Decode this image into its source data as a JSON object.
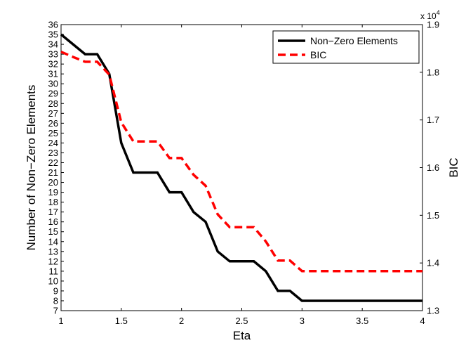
{
  "chart_data": {
    "type": "line",
    "xlabel": "Eta",
    "ylabel_left": "Number of Non−Zero Elements",
    "ylabel_right": "BIC",
    "right_axis_multiplier": "x 10",
    "right_axis_multiplier_exponent": "4",
    "xlim": [
      1,
      4
    ],
    "ylim_left": [
      7,
      36
    ],
    "ylim_right": [
      1.3,
      1.9
    ],
    "x_ticks": [
      "1",
      "1.5",
      "2",
      "2.5",
      "3",
      "3.5",
      "4"
    ],
    "x_tick_values": [
      1,
      1.5,
      2,
      2.5,
      3,
      3.5,
      4
    ],
    "left_ticks": [
      7,
      8,
      9,
      10,
      11,
      12,
      13,
      14,
      15,
      16,
      17,
      18,
      19,
      20,
      21,
      22,
      23,
      24,
      25,
      26,
      27,
      28,
      29,
      30,
      31,
      32,
      33,
      34,
      35,
      36
    ],
    "right_ticks": [
      "1.3",
      "1.4",
      "1.5",
      "1.6",
      "1.7",
      "1.8",
      "1.9"
    ],
    "right_tick_values": [
      1.3,
      1.4,
      1.5,
      1.6,
      1.7,
      1.8,
      1.9
    ],
    "grid": false,
    "legend_position": "top-right",
    "series": [
      {
        "name": "Non−Zero Elements",
        "axis": "left",
        "color": "#000000",
        "style": "solid",
        "points": [
          [
            1.0,
            35
          ],
          [
            1.1,
            34
          ],
          [
            1.2,
            33
          ],
          [
            1.3,
            33
          ],
          [
            1.4,
            31
          ],
          [
            1.5,
            24
          ],
          [
            1.6,
            21
          ],
          [
            1.7,
            21
          ],
          [
            1.8,
            21
          ],
          [
            1.9,
            19
          ],
          [
            2.0,
            19
          ],
          [
            2.1,
            17
          ],
          [
            2.2,
            16
          ],
          [
            2.3,
            13
          ],
          [
            2.4,
            12
          ],
          [
            2.5,
            12
          ],
          [
            2.6,
            12
          ],
          [
            2.7,
            11
          ],
          [
            2.8,
            9
          ],
          [
            2.9,
            9
          ],
          [
            3.0,
            8
          ],
          [
            3.5,
            8
          ],
          [
            4.0,
            8
          ]
        ]
      },
      {
        "name": "BIC",
        "axis": "right",
        "color": "#ff0000",
        "style": "dashed",
        "points": [
          [
            1.0,
            1.843
          ],
          [
            1.1,
            1.832
          ],
          [
            1.2,
            1.822
          ],
          [
            1.3,
            1.822
          ],
          [
            1.4,
            1.795
          ],
          [
            1.5,
            1.695
          ],
          [
            1.6,
            1.655
          ],
          [
            1.7,
            1.655
          ],
          [
            1.8,
            1.655
          ],
          [
            1.9,
            1.62
          ],
          [
            2.0,
            1.62
          ],
          [
            2.1,
            1.585
          ],
          [
            2.2,
            1.562
          ],
          [
            2.3,
            1.502
          ],
          [
            2.4,
            1.475
          ],
          [
            2.5,
            1.475
          ],
          [
            2.6,
            1.475
          ],
          [
            2.7,
            1.445
          ],
          [
            2.8,
            1.405
          ],
          [
            2.9,
            1.405
          ],
          [
            3.0,
            1.383
          ],
          [
            3.5,
            1.383
          ],
          [
            4.0,
            1.383
          ]
        ]
      }
    ]
  }
}
